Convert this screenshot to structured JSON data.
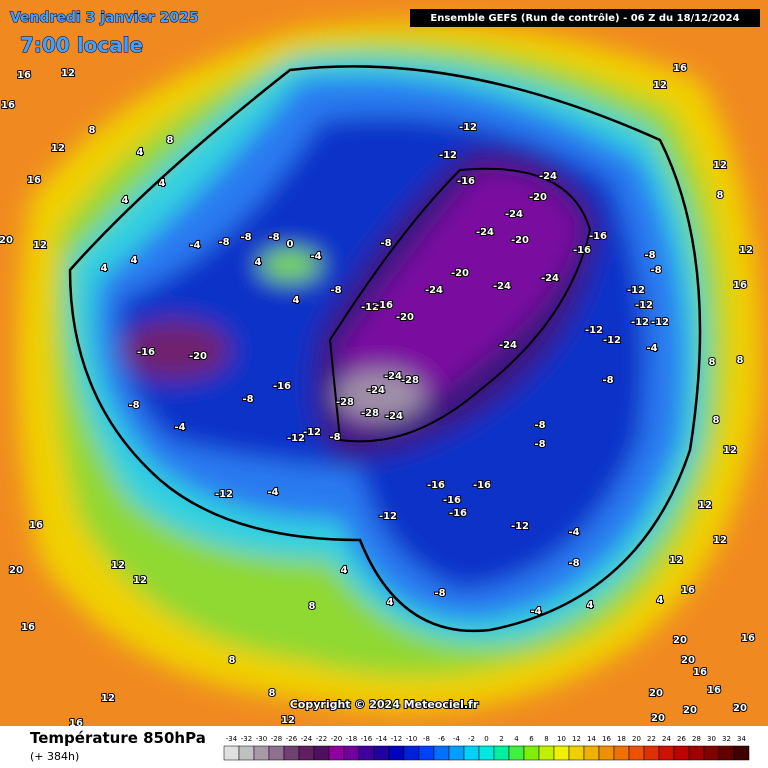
{
  "header": {
    "date": "Vendredi 3 janvier 2025",
    "time": "7:00 locale",
    "model": "Ensemble GEFS  (Run de contrôle)  -  06 Z du 18/12/2024"
  },
  "footer": {
    "copyright": "Copyright © 2024 Meteociel.fr",
    "variable": "Température 850hPa",
    "lead": "(+ 384h)"
  },
  "legend": {
    "ticks": [
      -34,
      -32,
      -30,
      -28,
      -26,
      -24,
      -22,
      -20,
      -18,
      -16,
      -14,
      -12,
      -10,
      -8,
      -6,
      -4,
      -2,
      0,
      2,
      4,
      6,
      8,
      10,
      12,
      14,
      16,
      18,
      20,
      22,
      24,
      26,
      28,
      30,
      32,
      34
    ],
    "colors": [
      "#e0e0e0",
      "#c0c0c0",
      "#a898a8",
      "#907090",
      "#704070",
      "#602060",
      "#501060",
      "#9000a0",
      "#7000a0",
      "#4000a0",
      "#2000a0",
      "#0000c0",
      "#0020e0",
      "#0040ff",
      "#0070ff",
      "#00a0ff",
      "#00d0ff",
      "#00e8e0",
      "#00f0a0",
      "#40f040",
      "#80f000",
      "#c0f000",
      "#f0f000",
      "#f0d000",
      "#f0b000",
      "#f09000",
      "#f07000",
      "#f05000",
      "#e03000",
      "#d01000",
      "#c00000",
      "#a00000",
      "#800000",
      "#600000",
      "#400000"
    ]
  },
  "map_labels": [
    16,
    12,
    16,
    8,
    12,
    4,
    8,
    16,
    4,
    4,
    20,
    12,
    4,
    4,
    -4,
    -8,
    -8,
    -8,
    0,
    4,
    -4,
    4,
    -8,
    -8,
    -12,
    -16,
    -20,
    -24,
    -20,
    -24,
    -24,
    -12,
    -12,
    -16,
    -24,
    -20,
    -24,
    -20,
    -24,
    -16,
    -16,
    -24,
    -28,
    -24,
    -24,
    -28,
    -28,
    -24,
    -8,
    -16,
    -20,
    -16,
    -8,
    -8,
    -4,
    -12,
    -12,
    -12,
    -4,
    -12,
    -16,
    -16,
    -16,
    -16,
    -12,
    -8,
    -8,
    -8,
    -4,
    -12,
    -12,
    -12,
    -12,
    -12,
    -8,
    -8,
    -12,
    -4,
    -8,
    -8,
    -4,
    4,
    4,
    16,
    12,
    12,
    8,
    8,
    8,
    12,
    12,
    16,
    12,
    16,
    12,
    8,
    16,
    20,
    16,
    12,
    12,
    8,
    8,
    12,
    16,
    12,
    8,
    4,
    4,
    20,
    20,
    20,
    16,
    16,
    20,
    20,
    20,
    16,
    12
  ]
}
